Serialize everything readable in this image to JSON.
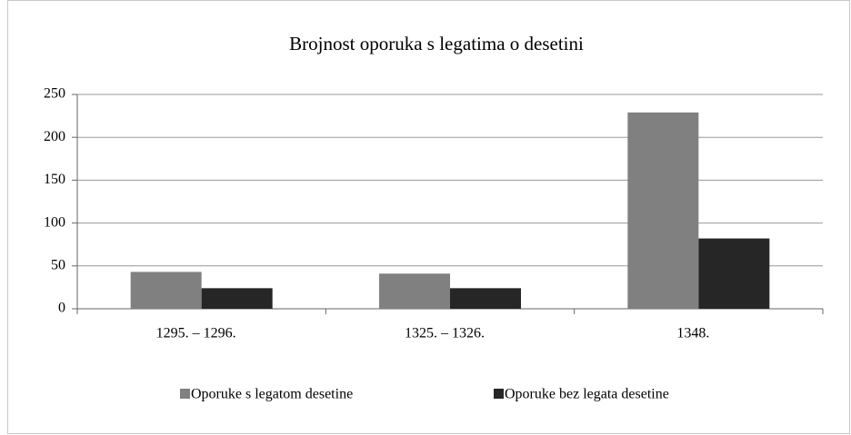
{
  "chart_data": {
    "type": "bar",
    "title": "Brojnost oporuka s legatima o desetini",
    "categories": [
      "1295. – 1296.",
      "1325. – 1326.",
      "1348."
    ],
    "series": [
      {
        "name": "Oporuke s legatom desetine",
        "color": "#808080",
        "values": [
          43,
          41,
          229
        ]
      },
      {
        "name": "Oporuke bez legata desetine",
        "color": "#262626",
        "values": [
          24,
          24,
          82
        ]
      }
    ],
    "ylim": [
      0,
      250
    ],
    "yticks": [
      0,
      50,
      100,
      150,
      200,
      250
    ],
    "grid": true,
    "legend": "bottom"
  }
}
